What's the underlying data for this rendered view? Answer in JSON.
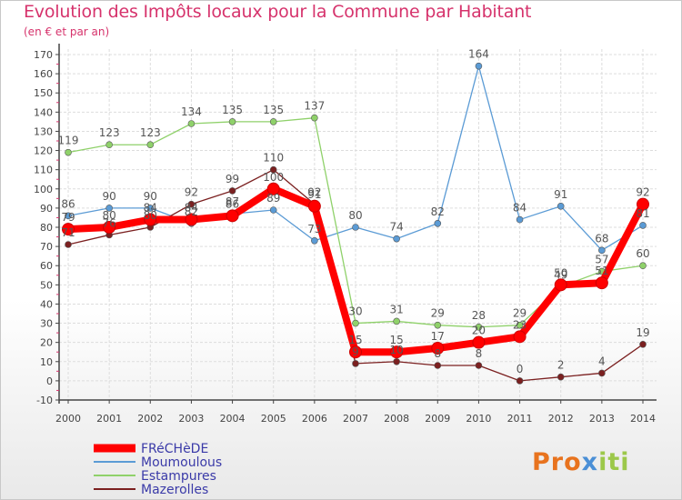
{
  "header": {
    "title": "Evolution des Impôts locaux pour la Commune par Habitant",
    "subtitle": "(en € et par an)"
  },
  "logo": {
    "text": "Proxiti"
  },
  "chart_data": {
    "type": "line",
    "title": "Evolution des Impôts locaux pour la Commune par Habitant",
    "subtitle": "(en € et par an)",
    "x": [
      2000,
      2001,
      2002,
      2003,
      2004,
      2005,
      2006,
      2007,
      2008,
      2009,
      2010,
      2011,
      2012,
      2013,
      2014
    ],
    "ylim": [
      -10,
      170
    ],
    "yticks": [
      -10,
      0,
      10,
      20,
      30,
      40,
      50,
      60,
      70,
      80,
      90,
      100,
      110,
      120,
      130,
      140,
      150,
      160,
      170
    ],
    "grid": true,
    "legend": "bottom-left",
    "series": [
      {
        "name": "FRéCHèDE",
        "color": "#ff0000",
        "values": [
          79,
          80,
          84,
          84,
          86,
          100,
          91,
          15,
          15,
          17,
          20,
          23,
          50,
          51,
          92
        ],
        "labels": [
          "79",
          "80",
          "84",
          "84",
          "86",
          "100",
          "91",
          "15",
          "15",
          "17",
          "20",
          "23",
          "50",
          "51",
          "92"
        ]
      },
      {
        "name": "Moumoulous",
        "color": "#5b9bd5",
        "values": [
          86,
          90,
          90,
          82,
          87,
          89,
          73,
          80,
          74,
          82,
          164,
          84,
          91,
          68,
          81
        ],
        "labels": [
          "86",
          "90",
          "90",
          "82",
          "87",
          "89",
          "73",
          "80",
          "74",
          "82",
          "164",
          "84",
          "91",
          "68",
          "81"
        ]
      },
      {
        "name": "Estampures",
        "color": "#8fd16a",
        "values": [
          119,
          123,
          123,
          134,
          135,
          135,
          137,
          30,
          31,
          29,
          28,
          29,
          49,
          57,
          60
        ],
        "labels": [
          "119",
          "123",
          "123",
          "134",
          "135",
          "135",
          "137",
          "30",
          "31",
          "29",
          "28",
          "29",
          "49",
          "57",
          "60"
        ]
      },
      {
        "name": "Mazerolles",
        "color": "#7b2020",
        "values": [
          71,
          76,
          80,
          92,
          99,
          110,
          92,
          9,
          10,
          8,
          8,
          0,
          2,
          4,
          19
        ],
        "labels": [
          "71",
          "76",
          "80",
          "92",
          "99",
          "110",
          "92",
          "9",
          "10",
          "8",
          "8",
          "0",
          "2",
          "4",
          "19"
        ]
      }
    ]
  }
}
